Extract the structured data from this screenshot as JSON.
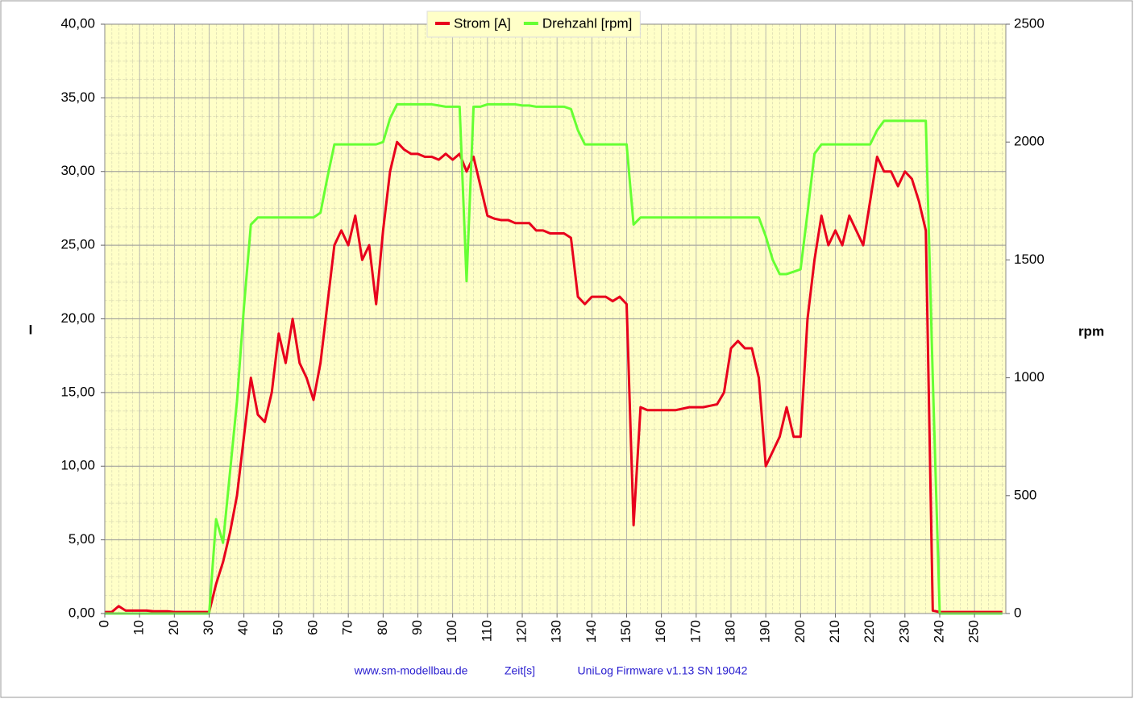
{
  "chart_data": {
    "type": "line",
    "ylabel": "I",
    "y2label": "rpm",
    "xlabel": "Zeit[s]",
    "footer_left": "www.sm-modellbau.de",
    "footer_right": "UniLog Firmware v1.13 SN 19042",
    "legend": "top",
    "grid": true,
    "xlim": [
      0,
      259
    ],
    "xticks": [
      0,
      10,
      20,
      30,
      40,
      50,
      60,
      70,
      80,
      90,
      100,
      110,
      120,
      130,
      140,
      150,
      160,
      170,
      180,
      190,
      200,
      210,
      220,
      230,
      240,
      250
    ],
    "ylim": [
      0,
      40
    ],
    "yticks": [
      {
        "value": 0,
        "label": "0,00"
      },
      {
        "value": 5,
        "label": "5,00"
      },
      {
        "value": 10,
        "label": "10,00"
      },
      {
        "value": 15,
        "label": "15,00"
      },
      {
        "value": 20,
        "label": "20,00"
      },
      {
        "value": 25,
        "label": "25,00"
      },
      {
        "value": 30,
        "label": "30,00"
      },
      {
        "value": 35,
        "label": "35,00"
      },
      {
        "value": 40,
        "label": "40,00"
      }
    ],
    "y2lim": [
      0,
      2500
    ],
    "y2ticks": [
      0,
      500,
      1000,
      1500,
      2000,
      2500
    ],
    "x": [
      0,
      2,
      4,
      6,
      8,
      10,
      12,
      14,
      16,
      18,
      20,
      22,
      24,
      26,
      28,
      30,
      32,
      34,
      36,
      38,
      40,
      42,
      44,
      46,
      48,
      50,
      52,
      54,
      56,
      58,
      60,
      62,
      64,
      66,
      68,
      70,
      72,
      74,
      76,
      78,
      80,
      82,
      84,
      86,
      88,
      90,
      92,
      94,
      96,
      98,
      100,
      102,
      104,
      106,
      108,
      110,
      112,
      114,
      116,
      118,
      120,
      122,
      124,
      126,
      128,
      130,
      132,
      134,
      136,
      138,
      140,
      142,
      144,
      146,
      148,
      150,
      152,
      154,
      156,
      158,
      160,
      162,
      164,
      166,
      168,
      170,
      172,
      174,
      176,
      178,
      180,
      182,
      184,
      186,
      188,
      190,
      192,
      194,
      196,
      198,
      200,
      202,
      204,
      206,
      208,
      210,
      212,
      214,
      216,
      218,
      220,
      222,
      224,
      226,
      228,
      230,
      232,
      234,
      236,
      238,
      240,
      242,
      244,
      246,
      248,
      250,
      252,
      254,
      256,
      258
    ],
    "series": [
      {
        "name": "Strom [A]",
        "color": "#e8001c",
        "values": [
          0.1,
          0.1,
          0.5,
          0.2,
          0.2,
          0.2,
          0.2,
          0.15,
          0.15,
          0.15,
          0.1,
          0.1,
          0.1,
          0.1,
          0.1,
          0.1,
          2,
          3.5,
          5.5,
          8,
          12,
          16,
          13.5,
          13,
          15,
          19,
          17,
          20,
          17,
          16,
          14.5,
          17,
          21,
          25,
          26,
          25,
          27,
          24,
          25,
          21,
          26,
          30,
          32,
          31.5,
          31.2,
          31.2,
          31,
          31,
          30.8,
          31.2,
          30.8,
          31.2,
          30,
          31,
          29,
          27,
          26.8,
          26.7,
          26.7,
          26.5,
          26.5,
          26.5,
          26,
          26,
          25.8,
          25.8,
          25.8,
          25.5,
          21.5,
          21,
          21.5,
          21.5,
          21.5,
          21.2,
          21.5,
          21,
          6,
          14,
          13.8,
          13.8,
          13.8,
          13.8,
          13.8,
          13.9,
          14,
          14,
          14,
          14.1,
          14.2,
          15,
          18,
          18.5,
          18,
          18,
          16,
          10,
          11,
          12,
          14,
          12,
          12,
          20,
          24,
          27,
          25,
          26,
          25,
          27,
          26,
          25,
          28,
          31,
          30,
          30,
          29,
          30,
          29.5,
          28,
          26,
          0.2,
          0.1,
          0.1,
          0.1,
          0.1,
          0.1,
          0.1,
          0.1,
          0.1,
          0.1,
          0.1
        ]
      },
      {
        "name": "Drehzahl [rpm]",
        "color": "#66ff33",
        "axis": "y2",
        "values": [
          0,
          0,
          0,
          0,
          0,
          0,
          0,
          0,
          0,
          0,
          0,
          0,
          0,
          0,
          0,
          0,
          400,
          300,
          600,
          900,
          1300,
          1650,
          1680,
          1680,
          1680,
          1680,
          1680,
          1680,
          1680,
          1680,
          1680,
          1700,
          1850,
          1990,
          1990,
          1990,
          1990,
          1990,
          1990,
          1990,
          2000,
          2100,
          2160,
          2160,
          2160,
          2160,
          2160,
          2160,
          2155,
          2150,
          2150,
          2150,
          1410,
          2150,
          2150,
          2160,
          2160,
          2160,
          2160,
          2160,
          2155,
          2155,
          2150,
          2150,
          2150,
          2150,
          2150,
          2140,
          2050,
          1990,
          1990,
          1990,
          1990,
          1990,
          1990,
          1990,
          1650,
          1680,
          1680,
          1680,
          1680,
          1680,
          1680,
          1680,
          1680,
          1680,
          1680,
          1680,
          1680,
          1680,
          1680,
          1680,
          1680,
          1680,
          1680,
          1600,
          1500,
          1440,
          1440,
          1450,
          1460,
          1700,
          1950,
          1990,
          1990,
          1990,
          1990,
          1990,
          1990,
          1990,
          1990,
          2050,
          2090,
          2090,
          2090,
          2090,
          2090,
          2090,
          2090,
          1000,
          0,
          0,
          0,
          0,
          0,
          0,
          0,
          0,
          0,
          0
        ]
      }
    ]
  }
}
